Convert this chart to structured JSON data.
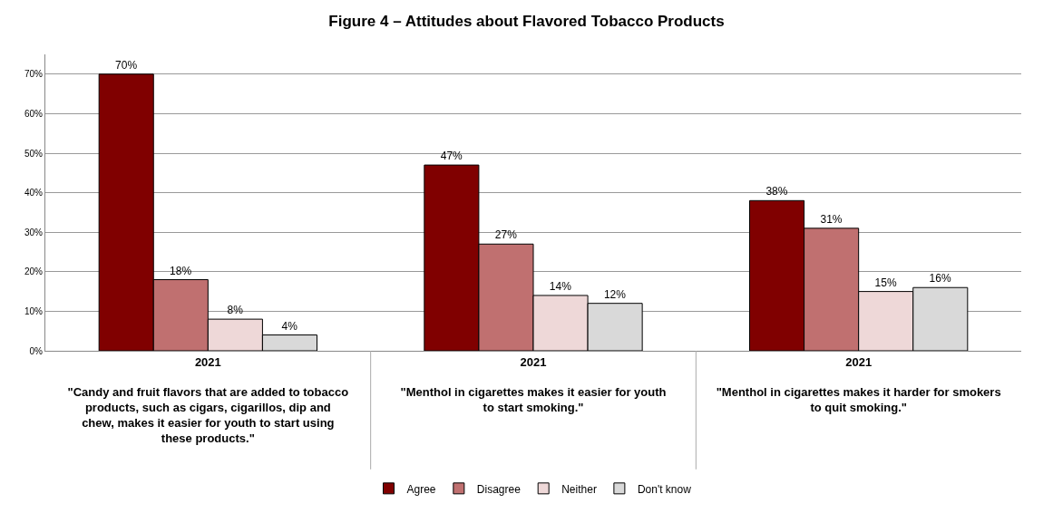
{
  "chart_data": {
    "type": "bar",
    "title": "Figure 4 – Attitudes about Flavored Tobacco Products",
    "categories": [
      "2021\n\"Candy and fruit flavors that are added to tobacco products, such as cigars, cigarillos, dip and chew, makes it easier for youth to start using these products.\"",
      "2021\n\"Menthol in cigarettes makes it easier for youth to start smoking.\"",
      "2021\n\"Menthol in cigarettes makes it harder for smokers to quit smoking.\""
    ],
    "series": [
      {
        "name": "Agree",
        "color": "#800000",
        "values": [
          70,
          47,
          38
        ],
        "value_labels": [
          "70%",
          "47%",
          "38%"
        ]
      },
      {
        "name": "Disagree",
        "color": "#c07070",
        "values": [
          18,
          27,
          31
        ],
        "value_labels": [
          "18%",
          "27%",
          "31%"
        ]
      },
      {
        "name": "Neither",
        "color": "#eed8d8",
        "values": [
          8,
          14,
          15
        ],
        "value_labels": [
          "8%",
          "14%",
          "15%"
        ]
      },
      {
        "name": "Don't know",
        "color": "#d9d9d9",
        "values": [
          4,
          12,
          16
        ],
        "value_labels": [
          "4%",
          "12%",
          "16%"
        ]
      }
    ],
    "ylim": [
      0,
      75
    ],
    "yticks": [
      {
        "value": 0,
        "label": "0%"
      },
      {
        "value": 10,
        "label": "10%"
      },
      {
        "value": 20,
        "label": "20%"
      },
      {
        "value": 30,
        "label": "30%"
      },
      {
        "value": 40,
        "label": "40%"
      },
      {
        "value": 50,
        "label": "50%"
      },
      {
        "value": 60,
        "label": "60%"
      },
      {
        "value": 70,
        "label": "70%"
      }
    ],
    "grid": "y",
    "legend": "bottom"
  }
}
